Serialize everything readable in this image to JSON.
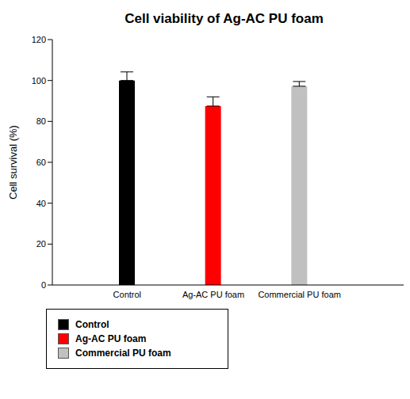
{
  "chart_data": {
    "type": "bar",
    "title": "Cell viability of Ag-AC PU foam",
    "y_label": "Cell survival (%)",
    "categories": [
      "Control",
      "Ag-AC PU foam",
      "Commercial PU foam"
    ],
    "values": [
      100,
      87.5,
      97.2
    ],
    "errors": [
      4.2,
      4.5,
      2.3
    ],
    "colors": [
      "#000000",
      "#ff0000",
      "#c0c0c0"
    ],
    "ylim": [
      0,
      120
    ],
    "yticks": [
      0,
      20,
      40,
      60,
      80,
      100,
      120
    ],
    "grid": false,
    "legend": "bottom-left"
  }
}
